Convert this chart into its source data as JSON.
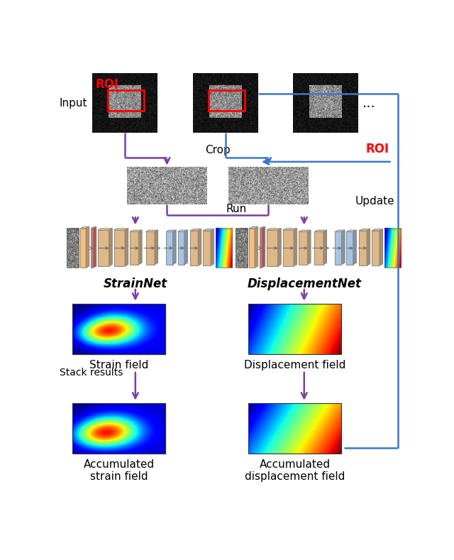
{
  "fig_width": 6.4,
  "fig_height": 7.89,
  "dpi": 100,
  "bg_color": "#ffffff",
  "purple": "#7B3FA0",
  "blue": "#3A78C9",
  "red": "#FF0000",
  "input_label": "Input",
  "crop_label": "Crop",
  "run_label": "Run",
  "update_label": "Update",
  "roi_label": "ROI",
  "strainnet_label": "StrainNet",
  "dispnet_label": "DisplacementNet",
  "strain_field_label": "Strain field",
  "disp_field_label": "Displacement field",
  "acc_strain_label": "Accumulated\nstrain field",
  "acc_disp_label": "Accumulated\ndisplacement field",
  "stack_label": "Stack results"
}
